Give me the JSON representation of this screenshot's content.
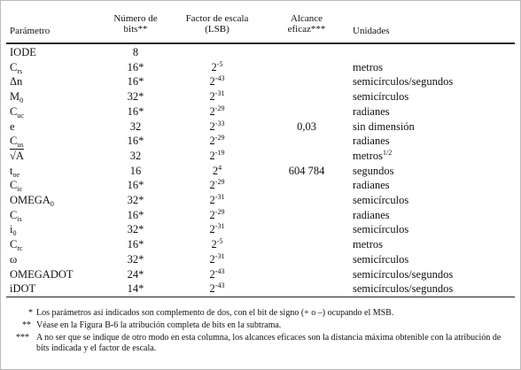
{
  "table": {
    "header": [
      "Parámetro",
      "Número de bits**",
      "Factor de escala (LSB)",
      "Alcance eficaz***",
      "Unidades"
    ],
    "rows": [
      {
        "param": {
          "text": "IODE",
          "sub": null
        },
        "bits": "8",
        "scale": null,
        "range": null,
        "units": null
      },
      {
        "param": {
          "text": "C",
          "sub": "rs"
        },
        "bits": "16*",
        "scale": {
          "base": "2",
          "exp": "-5"
        },
        "range": null,
        "units": {
          "text": "metros",
          "sup": null
        }
      },
      {
        "param": {
          "text": "Δn",
          "sub": null
        },
        "bits": "16*",
        "scale": {
          "base": "2",
          "exp": "-43"
        },
        "range": null,
        "units": {
          "text": "semicírculos/segundos",
          "sup": null
        }
      },
      {
        "param": {
          "text": "M",
          "sub": "0"
        },
        "bits": "32*",
        "scale": {
          "base": "2",
          "exp": "-31"
        },
        "range": null,
        "units": {
          "text": "semicírculos",
          "sup": null
        }
      },
      {
        "param": {
          "text": "C",
          "sub": "uc"
        },
        "bits": "16*",
        "scale": {
          "base": "2",
          "exp": "-29"
        },
        "range": null,
        "units": {
          "text": "radianes",
          "sup": null
        }
      },
      {
        "param": {
          "text": "e",
          "sub": null
        },
        "bits": "32",
        "scale": {
          "base": "2",
          "exp": "-33"
        },
        "range": "0,03",
        "units": {
          "text": "sin dimensión",
          "sup": null
        }
      },
      {
        "param": {
          "text": "C",
          "sub": "us"
        },
        "bits": "16*",
        "scale": {
          "base": "2",
          "exp": "-29"
        },
        "range": null,
        "units": {
          "text": "radianes",
          "sup": null
        }
      },
      {
        "param": {
          "text": "√A",
          "sub": null
        },
        "bits": "32",
        "scale": {
          "base": "2",
          "exp": "-19"
        },
        "range": null,
        "units": {
          "text": "metros",
          "sup": "1/2"
        }
      },
      {
        "param": {
          "text": "t",
          "sub": "oe"
        },
        "bits": "16",
        "scale": {
          "base": "2",
          "exp": "4"
        },
        "range": "604 784",
        "units": {
          "text": "segundos",
          "sup": null
        }
      },
      {
        "param": {
          "text": "C",
          "sub": "ic"
        },
        "bits": "16*",
        "scale": {
          "base": "2",
          "exp": "-29"
        },
        "range": null,
        "units": {
          "text": "radianes",
          "sup": null
        }
      },
      {
        "param": {
          "text": "OMEGA",
          "sub": "0"
        },
        "bits": "32*",
        "scale": {
          "base": "2",
          "exp": "-31"
        },
        "range": null,
        "units": {
          "text": "semicírculos",
          "sup": null
        }
      },
      {
        "param": {
          "text": "C",
          "sub": "is"
        },
        "bits": "16*",
        "scale": {
          "base": "2",
          "exp": "-29"
        },
        "range": null,
        "units": {
          "text": "radianes",
          "sup": null
        }
      },
      {
        "param": {
          "text": "i",
          "sub": "0"
        },
        "bits": "32*",
        "scale": {
          "base": "2",
          "exp": "-31"
        },
        "range": null,
        "units": {
          "text": "semicírculos",
          "sup": null
        }
      },
      {
        "param": {
          "text": "C",
          "sub": "rc"
        },
        "bits": "16*",
        "scale": {
          "base": "2",
          "exp": "-5"
        },
        "range": null,
        "units": {
          "text": "metros",
          "sup": null
        }
      },
      {
        "param": {
          "text": "ω",
          "sub": null
        },
        "bits": "32*",
        "scale": {
          "base": "2",
          "exp": "-31"
        },
        "range": null,
        "units": {
          "text": "semicírculos",
          "sup": null
        }
      },
      {
        "param": {
          "text": "OMEGADOT",
          "sub": null
        },
        "bits": "24*",
        "scale": {
          "base": "2",
          "exp": "-43"
        },
        "range": null,
        "units": {
          "text": "semicírculos/segundos",
          "sup": null
        }
      },
      {
        "param": {
          "text": "iDOT",
          "sub": null
        },
        "bits": "14*",
        "scale": {
          "base": "2",
          "exp": "-43"
        },
        "range": null,
        "units": {
          "text": "semicírculos/segundos",
          "sup": null
        }
      }
    ]
  },
  "footnotes": [
    {
      "mark": "*",
      "text": "Los parámetros así indicados son complemento de dos, con el bit de signo (+ o –) ocupando el MSB."
    },
    {
      "mark": "**",
      "text": "Véase en la Figura B-6 la atribución completa de bits en la subtrama."
    },
    {
      "mark": "***",
      "text": "A no ser que se indique de otro modo en esta columna, los alcances eficaces son la distancia máxima obtenible con la atribución de bits indicada y el factor de escala."
    }
  ]
}
